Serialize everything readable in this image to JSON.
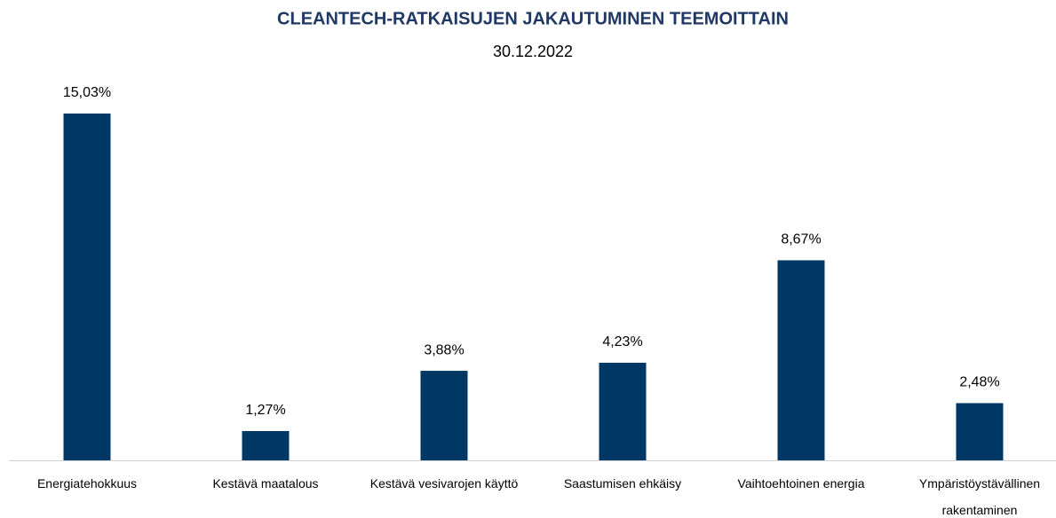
{
  "chart_data": {
    "type": "bar",
    "title": "CLEANTECH-RATKAISUJEN JAKAUTUMINEN TEEMOITTAIN",
    "subtitle": "30.12.2022",
    "categories": [
      "Energiatehokkuus",
      "Kestävä maatalous",
      "Kestävä vesivarojen käyttö",
      "Saastumisen ehkäisy",
      "Vaihtoehtoinen energia",
      "Ympäristöystävällinen rakentaminen"
    ],
    "values": [
      15.03,
      1.27,
      3.88,
      4.23,
      8.67,
      2.48
    ],
    "value_labels": [
      "15,03%",
      "1,27%",
      "3,88%",
      "4,23%",
      "8,67%",
      "2,48%"
    ],
    "color": "#003865"
  }
}
